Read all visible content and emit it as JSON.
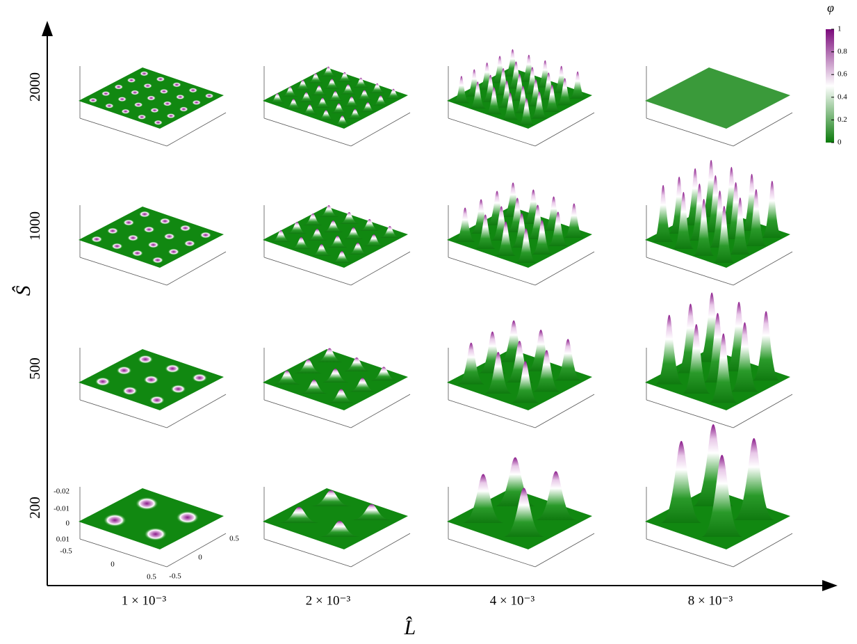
{
  "x_axis": {
    "label": "L̂",
    "categories": [
      "1 × 10⁻³",
      "2 × 10⁻³",
      "4 × 10⁻³",
      "8 × 10⁻³"
    ]
  },
  "y_axis": {
    "label": "Ŝ",
    "categories": [
      "2000",
      "1000",
      "500",
      "200"
    ]
  },
  "colorbar": {
    "label": "φ",
    "range": [
      0,
      1
    ],
    "ticks": [
      0,
      0.2,
      0.4,
      0.6,
      0.8,
      1
    ]
  },
  "sample_axes": {
    "z_ticks": [
      "-0.02",
      "-0.01",
      "0",
      "0.01"
    ],
    "x_ticks": [
      "-0.5",
      "0",
      "0.5"
    ],
    "y_ticks": [
      "0.5",
      "0",
      "-0.5"
    ]
  }
}
